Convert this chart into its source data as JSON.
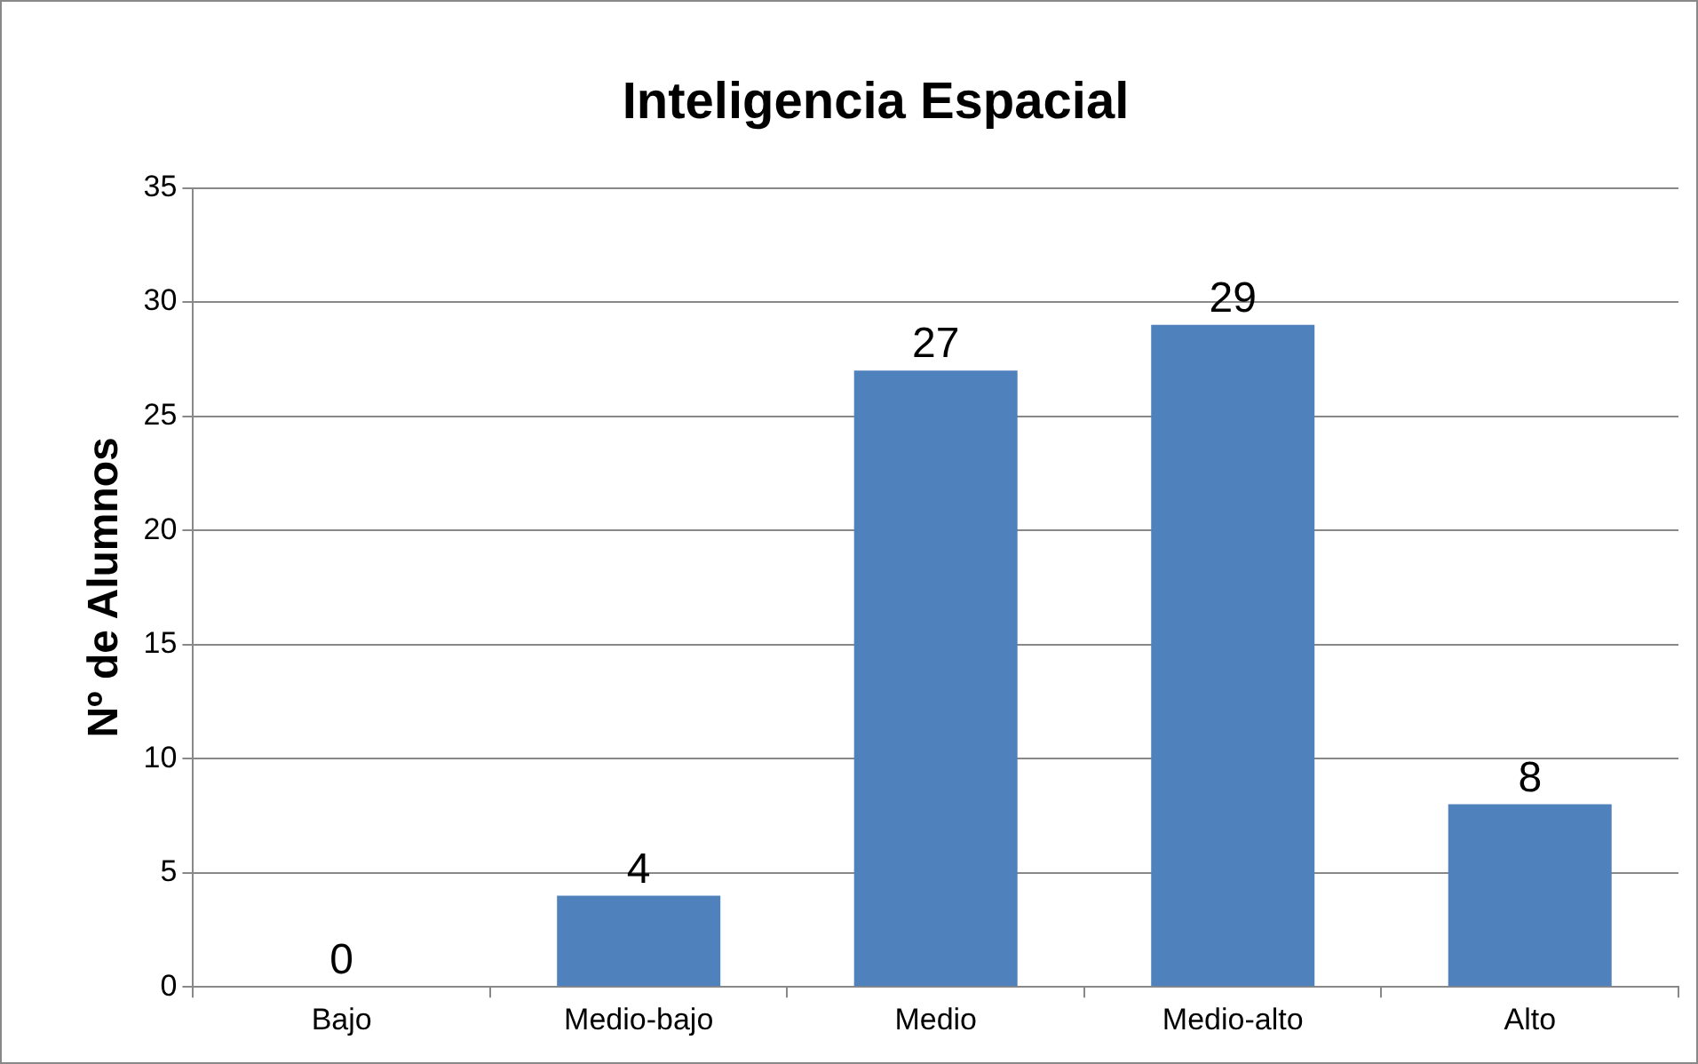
{
  "chart_data": {
    "type": "bar",
    "title": "Inteligencia Espacial",
    "ylabel": "Nº de Alumnos",
    "categories": [
      "Bajo",
      "Medio-bajo",
      "Medio",
      "Medio-alto",
      "Alto"
    ],
    "values": [
      0,
      4,
      27,
      29,
      8
    ],
    "color": "#4f81bd",
    "ylim": [
      0,
      35
    ],
    "yticks": [
      0,
      5,
      10,
      15,
      20,
      25,
      30,
      35
    ],
    "grid": "y",
    "data_labels": true,
    "legend": false
  }
}
